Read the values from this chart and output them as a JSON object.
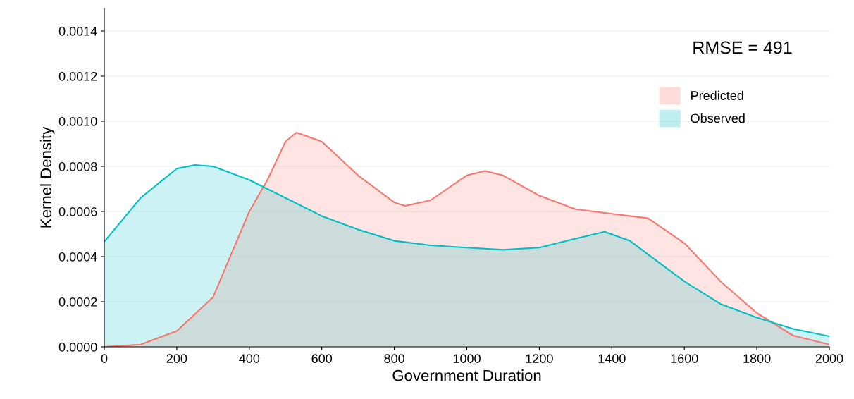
{
  "chart_data": {
    "type": "area",
    "xlabel": "Government Duration",
    "ylabel": "Kernel Density",
    "annotations": [
      "RMSE = 491"
    ],
    "series": [
      {
        "name": "Predicted",
        "color": "#f8766d",
        "x": [
          0,
          100,
          200,
          300,
          400,
          450,
          500,
          530,
          600,
          700,
          800,
          830,
          900,
          1000,
          1050,
          1100,
          1200,
          1300,
          1400,
          1500,
          1600,
          1700,
          1800,
          1900,
          2000
        ],
        "values": [
          0,
          1e-05,
          7e-05,
          0.00022,
          0.0006,
          0.00074,
          0.00091,
          0.00095,
          0.00091,
          0.00076,
          0.00064,
          0.000625,
          0.00065,
          0.00076,
          0.00078,
          0.00076,
          0.00067,
          0.00061,
          0.00059,
          0.00057,
          0.00046,
          0.00029,
          0.00015,
          5e-05,
          1e-05
        ]
      },
      {
        "name": "Observed",
        "color": "#00bfc4",
        "x": [
          0,
          100,
          200,
          250,
          300,
          400,
          500,
          600,
          700,
          800,
          900,
          1000,
          1100,
          1200,
          1300,
          1380,
          1450,
          1500,
          1600,
          1700,
          1800,
          1900,
          2000
        ],
        "values": [
          0.000466,
          0.00066,
          0.00079,
          0.000806,
          0.0008,
          0.00074,
          0.00066,
          0.00058,
          0.00052,
          0.00047,
          0.00045,
          0.00044,
          0.00043,
          0.00044,
          0.00048,
          0.00051,
          0.00047,
          0.00041,
          0.00029,
          0.00019,
          0.00013,
          8e-05,
          4.7e-05
        ]
      }
    ],
    "xlim": [
      0,
      2000
    ],
    "xticks": [
      0,
      200,
      400,
      600,
      800,
      1000,
      1200,
      1400,
      1600,
      1800,
      2000
    ],
    "ylim": [
      0,
      0.0015
    ],
    "yticks": [
      {
        "value": 0,
        "label": "0.0000"
      },
      {
        "value": 0.0002,
        "label": "0.0002"
      },
      {
        "value": 0.0004,
        "label": "0.0004"
      },
      {
        "value": 0.0006,
        "label": "0.0006"
      },
      {
        "value": 0.0008,
        "label": "0.0008"
      },
      {
        "value": 0.001,
        "label": "0.0010"
      },
      {
        "value": 0.0012,
        "label": "0.0012"
      },
      {
        "value": 0.0014,
        "label": "0.0014"
      }
    ],
    "grid": "y",
    "legend": "top right"
  }
}
